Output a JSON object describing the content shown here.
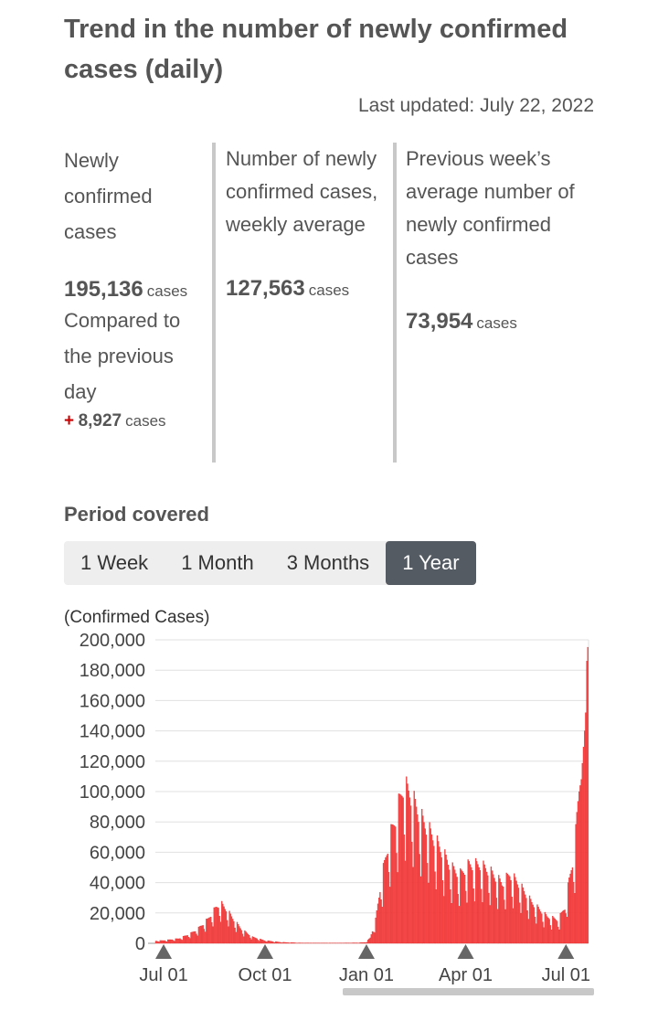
{
  "header": {
    "title": "Trend in the number of newly confirmed cases (daily)",
    "last_updated": "Last updated: July 22, 2022"
  },
  "stats": {
    "new_cases": {
      "label": "Newly confirmed cases",
      "value": "195,136",
      "unit": "cases",
      "compare_label": "Compared to the previous day",
      "diff_sign": "+",
      "diff_value": "8,927",
      "diff_unit": "cases"
    },
    "weekly_avg": {
      "label": "Number of newly confirmed cases, weekly average",
      "value": "127,563",
      "unit": "cases"
    },
    "prev_week_avg": {
      "label": "Previous week’s average number of newly confirmed cases",
      "value": "73,954",
      "unit": "cases"
    }
  },
  "period": {
    "label": "Period covered",
    "tabs": [
      "1 Week",
      "1 Month",
      "3 Months",
      "1 Year"
    ],
    "active": "1 Year"
  },
  "chart_data": {
    "type": "bar",
    "ylabel": "(Confirmed Cases)",
    "ylim": [
      0,
      200000
    ],
    "yticks": [
      "0",
      "20,000",
      "40,000",
      "60,000",
      "80,000",
      "100,000",
      "120,000",
      "140,000",
      "160,000",
      "180,000",
      "200,000"
    ],
    "xticks": [
      "Jul 01",
      "Oct 01",
      "Jan 01",
      "Apr 01",
      "Jul 01"
    ],
    "x_start": "2021-06-24",
    "x_end": "2022-07-22",
    "color": "#ff4d4d",
    "edge_color": "#d22",
    "grid": true,
    "anchors": [
      [
        "2021-06-24",
        1500
      ],
      [
        "2021-07-01",
        1800
      ],
      [
        "2021-07-15",
        3000
      ],
      [
        "2021-07-25",
        6000
      ],
      [
        "2021-08-01",
        9000
      ],
      [
        "2021-08-10",
        15000
      ],
      [
        "2021-08-18",
        23000
      ],
      [
        "2021-08-22",
        25500
      ],
      [
        "2021-08-28",
        21000
      ],
      [
        "2021-09-03",
        15000
      ],
      [
        "2021-09-10",
        9000
      ],
      [
        "2021-09-20",
        4000
      ],
      [
        "2021-10-01",
        1800
      ],
      [
        "2021-10-15",
        700
      ],
      [
        "2021-11-01",
        250
      ],
      [
        "2021-12-01",
        150
      ],
      [
        "2021-12-25",
        300
      ],
      [
        "2022-01-01",
        600
      ],
      [
        "2022-01-05",
        3500
      ],
      [
        "2022-01-10",
        15000
      ],
      [
        "2022-01-15",
        40000
      ],
      [
        "2022-01-22",
        65000
      ],
      [
        "2022-01-30",
        85000
      ],
      [
        "2022-02-04",
        100000
      ],
      [
        "2022-02-10",
        96000
      ],
      [
        "2022-02-20",
        80000
      ],
      [
        "2022-03-01",
        70000
      ],
      [
        "2022-03-10",
        60000
      ],
      [
        "2022-03-20",
        48000
      ],
      [
        "2022-03-28",
        44000
      ],
      [
        "2022-04-05",
        50000
      ],
      [
        "2022-04-15",
        50000
      ],
      [
        "2022-04-25",
        45000
      ],
      [
        "2022-05-05",
        38000
      ],
      [
        "2022-05-12",
        44000
      ],
      [
        "2022-05-20",
        38000
      ],
      [
        "2022-06-01",
        26000
      ],
      [
        "2022-06-15",
        17000
      ],
      [
        "2022-06-25",
        15000
      ],
      [
        "2022-07-01",
        23000
      ],
      [
        "2022-07-05",
        40000
      ],
      [
        "2022-07-10",
        60000
      ],
      [
        "2022-07-14",
        100000
      ],
      [
        "2022-07-16",
        108000
      ],
      [
        "2022-07-19",
        140000
      ],
      [
        "2022-07-20",
        152000
      ],
      [
        "2022-07-21",
        186000
      ],
      [
        "2022-07-22",
        195136
      ]
    ]
  }
}
